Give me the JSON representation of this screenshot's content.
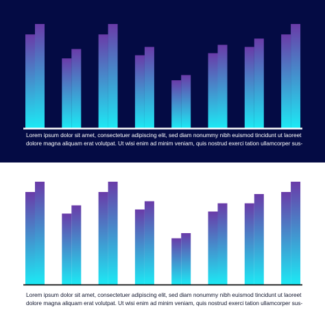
{
  "colors": {
    "dark_background": "#040b44",
    "light_background": "#ffffff",
    "bar_top": "#6a3ba8",
    "bar_bottom": "#1de9f4",
    "axis_on_dark": "#ffffff",
    "axis_on_light": "#111111",
    "text_on_dark": "#ffffff",
    "text_on_light": "#10152e"
  },
  "chart_data": [
    {
      "type": "bar",
      "theme": "dark",
      "title": "",
      "xlabel": "",
      "ylabel": "",
      "ylim": [
        0,
        100
      ],
      "grid": false,
      "categories": [
        "",
        "",
        "",
        "",
        "",
        "",
        "",
        ""
      ],
      "series": [
        {
          "values": [
            90,
            67,
            90,
            70,
            46,
            72,
            78,
            90
          ]
        },
        {
          "values": [
            100,
            76,
            100,
            78,
            51,
            80,
            86,
            100
          ]
        }
      ],
      "caption": [
        "Lorem ipsum dolor sit amet, consectetuer adipiscing elit, sed diam nonummy nibh euismod tincidunt ut laoreet",
        "dolore magna aliquam erat volutpat. Ut wisi enim ad minim veniam, quis nostrud exerci tation ullamcorper sus-"
      ]
    },
    {
      "type": "bar",
      "theme": "light",
      "title": "",
      "xlabel": "",
      "ylabel": "",
      "ylim": [
        0,
        100
      ],
      "grid": false,
      "categories": [
        "",
        "",
        "",
        "",
        "",
        "",
        "",
        ""
      ],
      "series": [
        {
          "values": [
            90,
            69,
            90,
            73,
            45,
            71,
            79,
            90
          ]
        },
        {
          "values": [
            100,
            77,
            100,
            81,
            50,
            79,
            88,
            100
          ]
        }
      ],
      "caption": [
        "Lorem ipsum dolor sit amet, consectetuer adipiscing elit, sed diam nonummy nibh euismod tincidunt ut laoreet",
        "dolore magna aliquam erat volutpat. Ut wisi enim ad minim veniam, quis nostrud exerci tation ullamcorper sus-"
      ]
    }
  ]
}
